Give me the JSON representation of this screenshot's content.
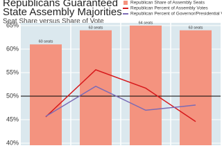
{
  "chart_data": {
    "type": "bar_line",
    "title": "Republicans Guaranteed State Assembly Majorities",
    "subtitle": "Seat Share versus Share of Vote",
    "categories": [
      null,
      null,
      null,
      null
    ],
    "series": [
      {
        "name": "Republican Share of Assembly Seats",
        "color": "#f4937f",
        "kind": "bar",
        "values": [
          61,
          64,
          65,
          64
        ],
        "seat_labels": [
          "60 seats",
          "63 seats",
          "64 seats",
          "63 seats"
        ]
      },
      {
        "name": "Republican Percent of Assembly Votes",
        "color": "#d7191c",
        "kind": "line",
        "values": [
          45.6,
          55.6,
          51.7,
          44.6
        ]
      },
      {
        "name": "Republican Percent of Governor/Presidential Vote",
        "color": "#7b6bb5",
        "kind": "line",
        "values": [
          45.7,
          52.1,
          47,
          48.1
        ]
      }
    ],
    "ylim": [
      40,
      65
    ],
    "yticks": [
      {
        "value": 40,
        "label": "40%"
      },
      {
        "value": 45,
        "label": "45%"
      },
      {
        "value": 50,
        "label": "50%"
      },
      {
        "value": 55,
        "label": "55%"
      },
      {
        "value": 60,
        "label": "60%"
      },
      {
        "value": 65,
        "label": "65%"
      }
    ],
    "reference_line": 50,
    "grid": true
  }
}
